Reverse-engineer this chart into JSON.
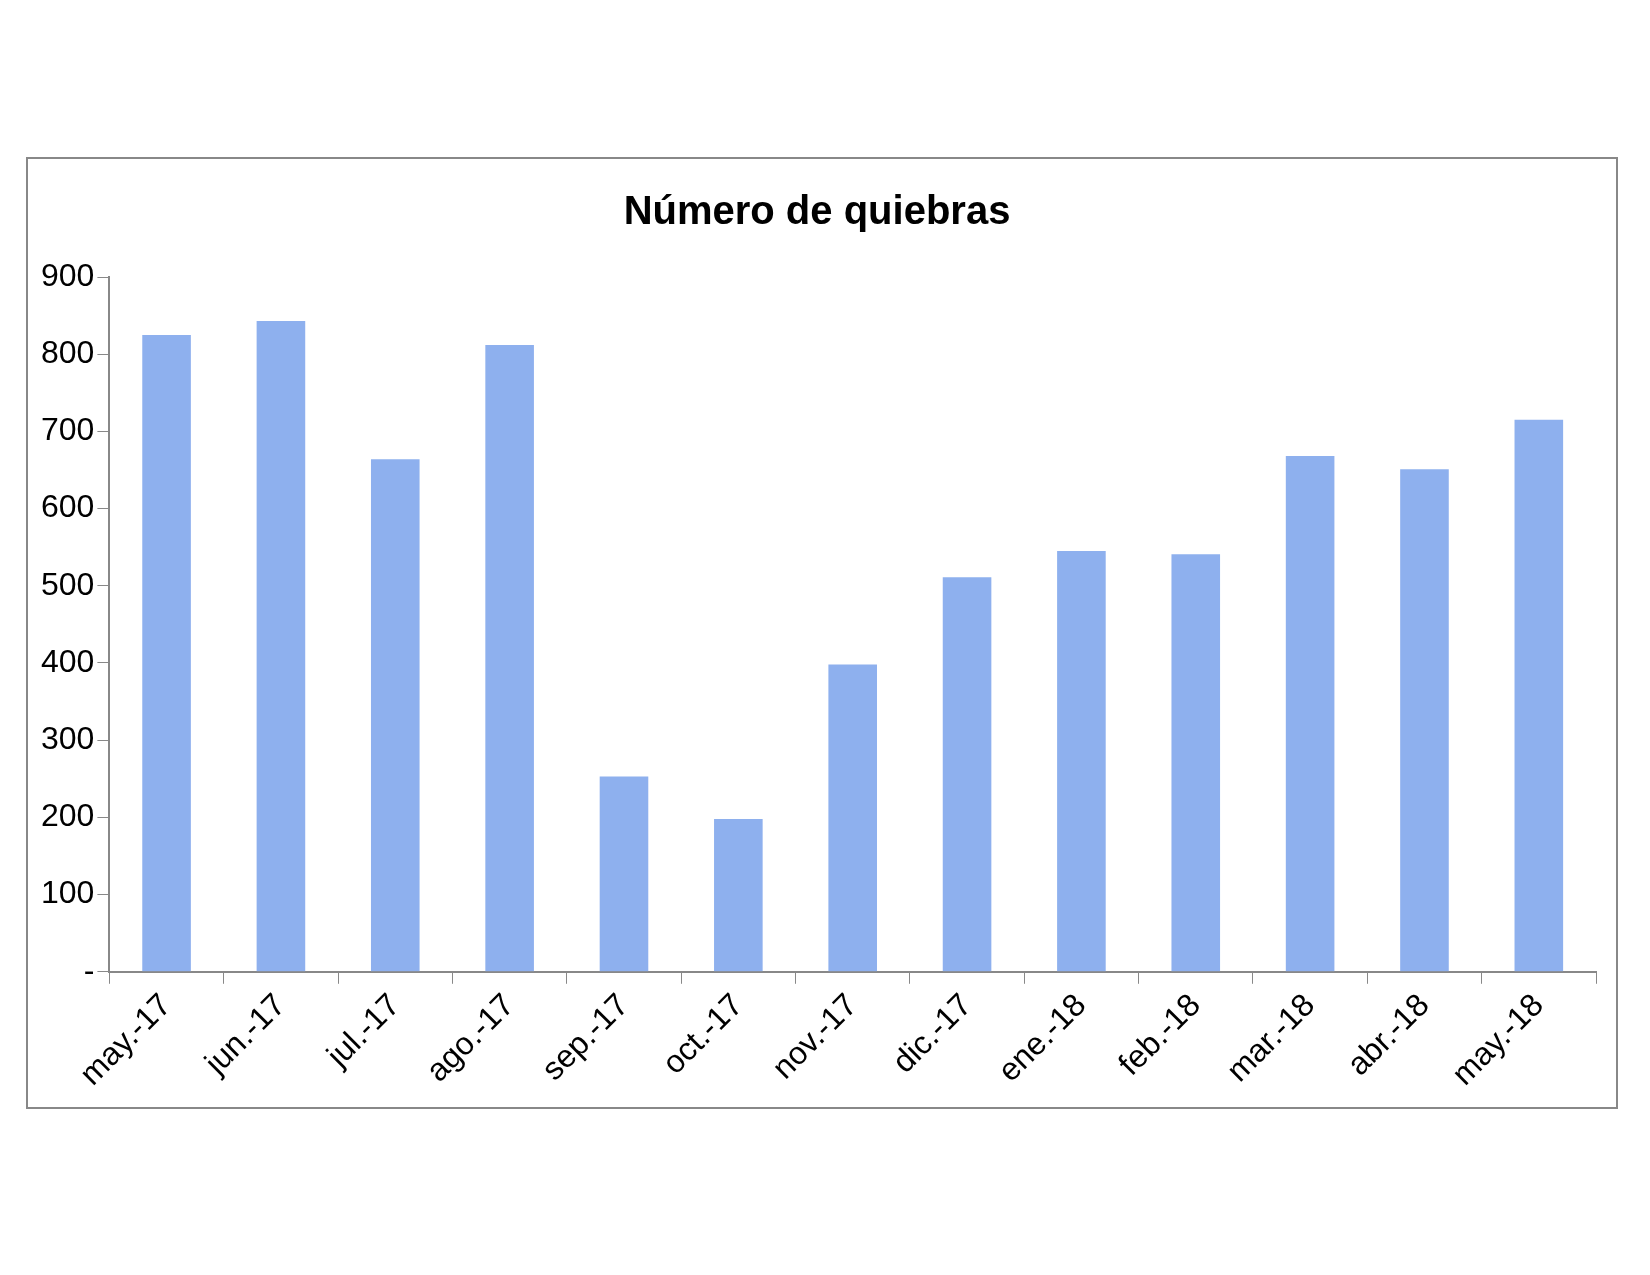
{
  "chart_data": {
    "type": "bar",
    "title": "Número de quiebras",
    "categories": [
      "may.-17",
      "jun.-17",
      "jul.-17",
      "ago.-17",
      "sep.-17",
      "oct.-17",
      "nov.-17",
      "dic.-17",
      "ene.-18",
      "feb.-18",
      "mar.-18",
      "abr.-18",
      "may.-18"
    ],
    "values": [
      825,
      843,
      664,
      812,
      253,
      198,
      398,
      511,
      545,
      541,
      668,
      651,
      715
    ],
    "color": "#8eb0ee",
    "ylim": [
      0,
      900
    ],
    "yticks": [
      {
        "value": 0,
        "label": "-"
      },
      100,
      200,
      300,
      400,
      500,
      600,
      700,
      800,
      900
    ],
    "grid": false,
    "legend": false
  }
}
